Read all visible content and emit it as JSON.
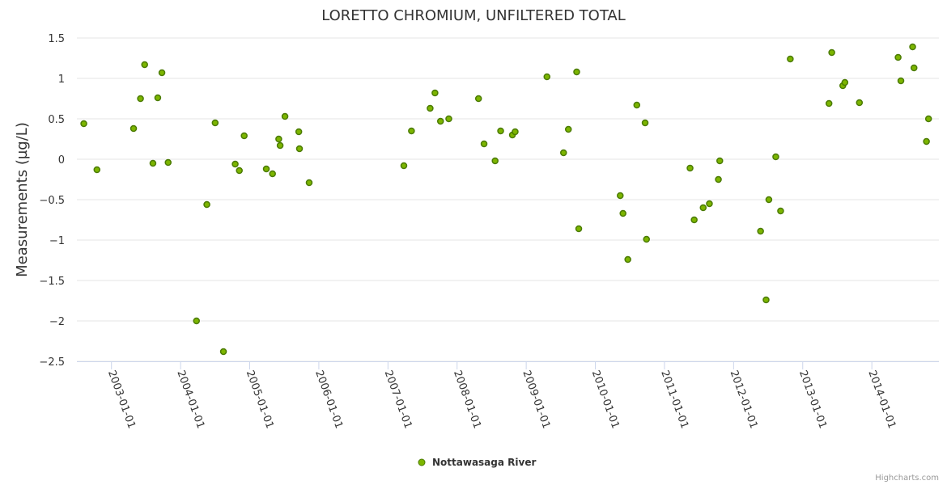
{
  "chart_data": {
    "type": "scatter",
    "title": "LORETTO CHROMIUM, UNFILTERED TOTAL",
    "xlabel": "",
    "ylabel": "Measurements (µg/L)",
    "ylim": [
      -2.5,
      1.5
    ],
    "yticks": [
      1.5,
      1,
      0.5,
      0,
      -0.5,
      -1,
      -1.5,
      -2,
      -2.5
    ],
    "ytick_labels": [
      "1.5",
      "1",
      "0.5",
      "0",
      "−0.5",
      "−1",
      "−1.5",
      "−2",
      "−2.5"
    ],
    "xlim": [
      2002.5,
      2014.97
    ],
    "xticks": [
      "2003-01-01",
      "2004-01-01",
      "2005-01-01",
      "2006-01-01",
      "2007-01-01",
      "2008-01-01",
      "2009-01-01",
      "2010-01-01",
      "2011-01-01",
      "2012-01-01",
      "2013-01-01",
      "2014-01-01"
    ],
    "grid": "horizontal",
    "legend_position": "bottom-center",
    "series": [
      {
        "name": "Nottawasaga River",
        "color": "#7cb500",
        "stroke": "#4a7a00",
        "points": [
          [
            2002.6,
            0.44
          ],
          [
            2002.79,
            -0.13
          ],
          [
            2003.32,
            0.38
          ],
          [
            2003.42,
            0.75
          ],
          [
            2003.48,
            1.17
          ],
          [
            2003.6,
            -0.05
          ],
          [
            2003.67,
            0.76
          ],
          [
            2003.73,
            1.07
          ],
          [
            2003.82,
            -0.04
          ],
          [
            2004.23,
            -2.0
          ],
          [
            2004.38,
            -0.56
          ],
          [
            2004.5,
            0.45
          ],
          [
            2004.62,
            -2.38
          ],
          [
            2004.79,
            -0.06
          ],
          [
            2004.85,
            -0.14
          ],
          [
            2004.92,
            0.29
          ],
          [
            2005.24,
            -0.12
          ],
          [
            2005.33,
            -0.18
          ],
          [
            2005.42,
            0.25
          ],
          [
            2005.44,
            0.17
          ],
          [
            2005.51,
            0.53
          ],
          [
            2005.71,
            0.34
          ],
          [
            2005.72,
            0.13
          ],
          [
            2005.86,
            -0.29
          ],
          [
            2007.23,
            -0.08
          ],
          [
            2007.34,
            0.35
          ],
          [
            2007.61,
            0.63
          ],
          [
            2007.68,
            0.82
          ],
          [
            2007.76,
            0.47
          ],
          [
            2007.88,
            0.5
          ],
          [
            2008.31,
            0.75
          ],
          [
            2008.39,
            0.19
          ],
          [
            2008.55,
            -0.02
          ],
          [
            2008.63,
            0.35
          ],
          [
            2008.8,
            0.3
          ],
          [
            2008.84,
            0.34
          ],
          [
            2009.3,
            1.02
          ],
          [
            2009.54,
            0.08
          ],
          [
            2009.61,
            0.37
          ],
          [
            2009.73,
            1.08
          ],
          [
            2009.76,
            -0.86
          ],
          [
            2010.36,
            -0.45
          ],
          [
            2010.4,
            -0.67
          ],
          [
            2010.47,
            -1.24
          ],
          [
            2010.6,
            0.67
          ],
          [
            2010.72,
            0.45
          ],
          [
            2010.74,
            -0.99
          ],
          [
            2011.37,
            -0.11
          ],
          [
            2011.43,
            -0.75
          ],
          [
            2011.56,
            -0.6
          ],
          [
            2011.65,
            -0.55
          ],
          [
            2011.78,
            -0.25
          ],
          [
            2011.8,
            -0.02
          ],
          [
            2012.39,
            -0.89
          ],
          [
            2012.47,
            -1.74
          ],
          [
            2012.51,
            -0.5
          ],
          [
            2012.61,
            0.03
          ],
          [
            2012.68,
            -0.64
          ],
          [
            2012.82,
            1.24
          ],
          [
            2013.38,
            0.69
          ],
          [
            2013.42,
            1.32
          ],
          [
            2013.58,
            0.91
          ],
          [
            2013.61,
            0.95
          ],
          [
            2013.82,
            0.7
          ],
          [
            2014.38,
            1.26
          ],
          [
            2014.42,
            0.97
          ],
          [
            2014.59,
            1.39
          ],
          [
            2014.61,
            1.13
          ],
          [
            2014.79,
            0.22
          ],
          [
            2014.82,
            0.5
          ]
        ]
      }
    ]
  },
  "credit": "Highcharts.com"
}
